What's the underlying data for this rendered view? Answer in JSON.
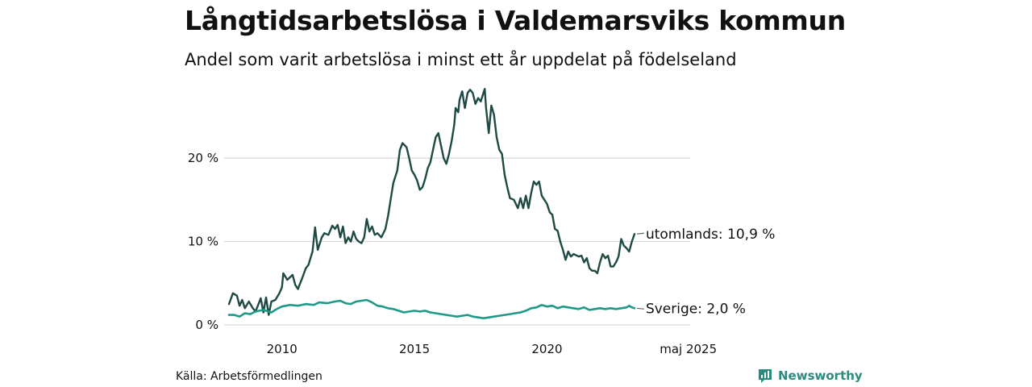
{
  "header": {
    "title": "Långtidsarbetslösa i Valdemarsviks kommun",
    "subtitle": "Andel som varit arbetslösa i minst ett år uppdelat på födelseland"
  },
  "footer": {
    "source": "Källa: Arbetsförmedlingen",
    "brand": "Newsworthy"
  },
  "colors": {
    "utomlands": "#1f4a44",
    "sverige": "#1d9a87",
    "grid": "#d9d9d9",
    "brand": "#2a8a7e"
  },
  "chart_data": {
    "type": "line",
    "title": "Långtidsarbetslösa i Valdemarsviks kommun",
    "subtitle": "Andel som varit arbetslösa i minst ett år uppdelat på födelseland",
    "x_ticks": [
      {
        "x": 2010,
        "label": "2010"
      },
      {
        "x": 2015,
        "label": "2015"
      },
      {
        "x": 2020,
        "label": "2020"
      },
      {
        "x": 2025.33,
        "label": "maj 2025"
      }
    ],
    "y_ticks": [
      {
        "y": 0,
        "label": "0 %"
      },
      {
        "y": 10,
        "label": "10 %"
      },
      {
        "y": 20,
        "label": "20 %"
      }
    ],
    "xlim": [
      2008.0,
      2025.4
    ],
    "ylim": [
      0,
      29
    ],
    "grid": true,
    "legend": "end-of-line labels",
    "series": [
      {
        "name": "utomlands",
        "end_label": "utomlands: 10,9 %",
        "color": "#1f4a44",
        "points": [
          [
            2008.0,
            2.5
          ],
          [
            2008.15,
            3.8
          ],
          [
            2008.3,
            3.5
          ],
          [
            2008.4,
            2.3
          ],
          [
            2008.5,
            3.0
          ],
          [
            2008.6,
            2.0
          ],
          [
            2008.75,
            2.8
          ],
          [
            2008.9,
            2.0
          ],
          [
            2009.0,
            1.6
          ],
          [
            2009.1,
            2.4
          ],
          [
            2009.2,
            3.2
          ],
          [
            2009.3,
            1.5
          ],
          [
            2009.4,
            3.3
          ],
          [
            2009.5,
            1.2
          ],
          [
            2009.6,
            2.8
          ],
          [
            2009.75,
            3.0
          ],
          [
            2009.9,
            3.8
          ],
          [
            2010.0,
            4.5
          ],
          [
            2010.05,
            6.2
          ],
          [
            2010.2,
            5.4
          ],
          [
            2010.4,
            6.0
          ],
          [
            2010.5,
            4.8
          ],
          [
            2010.6,
            4.3
          ],
          [
            2010.75,
            5.5
          ],
          [
            2010.9,
            6.8
          ],
          [
            2011.0,
            7.2
          ],
          [
            2011.15,
            8.8
          ],
          [
            2011.25,
            11.7
          ],
          [
            2011.35,
            9.0
          ],
          [
            2011.5,
            10.5
          ],
          [
            2011.6,
            11.0
          ],
          [
            2011.75,
            10.8
          ],
          [
            2011.9,
            11.9
          ],
          [
            2012.0,
            11.5
          ],
          [
            2012.1,
            12.0
          ],
          [
            2012.2,
            10.5
          ],
          [
            2012.3,
            11.8
          ],
          [
            2012.4,
            9.8
          ],
          [
            2012.5,
            10.5
          ],
          [
            2012.6,
            10.0
          ],
          [
            2012.7,
            11.2
          ],
          [
            2012.8,
            10.3
          ],
          [
            2012.9,
            10.0
          ],
          [
            2013.0,
            9.8
          ],
          [
            2013.1,
            10.5
          ],
          [
            2013.2,
            12.7
          ],
          [
            2013.3,
            11.2
          ],
          [
            2013.4,
            11.8
          ],
          [
            2013.5,
            10.8
          ],
          [
            2013.6,
            11.0
          ],
          [
            2013.75,
            10.5
          ],
          [
            2013.9,
            11.5
          ],
          [
            2014.0,
            13.0
          ],
          [
            2014.2,
            17.0
          ],
          [
            2014.35,
            18.5
          ],
          [
            2014.45,
            21.0
          ],
          [
            2014.55,
            21.8
          ],
          [
            2014.7,
            21.3
          ],
          [
            2014.8,
            20.0
          ],
          [
            2014.9,
            18.5
          ],
          [
            2015.0,
            18.0
          ],
          [
            2015.1,
            17.3
          ],
          [
            2015.2,
            16.2
          ],
          [
            2015.3,
            16.5
          ],
          [
            2015.4,
            17.5
          ],
          [
            2015.5,
            18.8
          ],
          [
            2015.6,
            19.5
          ],
          [
            2015.7,
            21.0
          ],
          [
            2015.8,
            22.5
          ],
          [
            2015.9,
            23.0
          ],
          [
            2016.0,
            21.5
          ],
          [
            2016.1,
            20.0
          ],
          [
            2016.2,
            19.3
          ],
          [
            2016.3,
            20.5
          ],
          [
            2016.4,
            22.0
          ],
          [
            2016.5,
            24.0
          ],
          [
            2016.55,
            26.0
          ],
          [
            2016.65,
            25.5
          ],
          [
            2016.7,
            27.0
          ],
          [
            2016.8,
            28.0
          ],
          [
            2016.9,
            26.0
          ],
          [
            2017.0,
            27.8
          ],
          [
            2017.1,
            28.2
          ],
          [
            2017.2,
            27.8
          ],
          [
            2017.3,
            26.5
          ],
          [
            2017.4,
            27.2
          ],
          [
            2017.5,
            26.8
          ],
          [
            2017.6,
            27.8
          ],
          [
            2017.65,
            28.3
          ],
          [
            2017.7,
            26.0
          ],
          [
            2017.8,
            23.0
          ],
          [
            2017.9,
            26.3
          ],
          [
            2018.0,
            25.2
          ],
          [
            2018.1,
            22.5
          ],
          [
            2018.2,
            21.0
          ],
          [
            2018.3,
            20.5
          ],
          [
            2018.4,
            18.0
          ],
          [
            2018.5,
            16.5
          ],
          [
            2018.6,
            15.2
          ],
          [
            2018.75,
            15.0
          ],
          [
            2018.9,
            14.0
          ],
          [
            2019.0,
            15.2
          ],
          [
            2019.1,
            14.0
          ],
          [
            2019.2,
            15.5
          ],
          [
            2019.3,
            14.0
          ],
          [
            2019.4,
            15.8
          ],
          [
            2019.5,
            17.2
          ],
          [
            2019.6,
            16.8
          ],
          [
            2019.7,
            17.2
          ],
          [
            2019.8,
            15.5
          ],
          [
            2019.9,
            15.0
          ],
          [
            2020.0,
            14.5
          ],
          [
            2020.1,
            13.5
          ],
          [
            2020.2,
            13.2
          ],
          [
            2020.3,
            11.5
          ],
          [
            2020.4,
            11.3
          ],
          [
            2020.5,
            10.0
          ],
          [
            2020.6,
            9.0
          ],
          [
            2020.7,
            7.8
          ],
          [
            2020.8,
            8.8
          ],
          [
            2020.9,
            8.2
          ],
          [
            2021.0,
            8.5
          ],
          [
            2021.2,
            8.2
          ],
          [
            2021.3,
            8.3
          ],
          [
            2021.4,
            7.5
          ],
          [
            2021.5,
            8.0
          ],
          [
            2021.6,
            6.8
          ],
          [
            2021.7,
            6.5
          ],
          [
            2021.8,
            6.5
          ],
          [
            2021.9,
            6.2
          ],
          [
            2022.0,
            7.5
          ],
          [
            2022.1,
            8.5
          ],
          [
            2022.2,
            8.0
          ],
          [
            2022.3,
            8.3
          ],
          [
            2022.4,
            7.0
          ],
          [
            2022.5,
            7.0
          ],
          [
            2022.6,
            7.5
          ],
          [
            2022.7,
            8.2
          ],
          [
            2022.8,
            10.3
          ],
          [
            2022.9,
            9.5
          ],
          [
            2023.0,
            9.2
          ],
          [
            2023.1,
            8.8
          ],
          [
            2023.2,
            10.0
          ],
          [
            2023.3,
            10.9
          ]
        ]
      },
      {
        "name": "Sverige",
        "end_label": "Sverige:  2,0 %",
        "color": "#1d9a87",
        "points": [
          [
            2008.0,
            1.2
          ],
          [
            2008.2,
            1.2
          ],
          [
            2008.4,
            1.0
          ],
          [
            2008.6,
            1.4
          ],
          [
            2008.8,
            1.3
          ],
          [
            2009.0,
            1.6
          ],
          [
            2009.3,
            1.8
          ],
          [
            2009.6,
            1.5
          ],
          [
            2009.8,
            1.9
          ],
          [
            2010.0,
            2.2
          ],
          [
            2010.3,
            2.4
          ],
          [
            2010.6,
            2.3
          ],
          [
            2010.9,
            2.5
          ],
          [
            2011.2,
            2.4
          ],
          [
            2011.4,
            2.7
          ],
          [
            2011.7,
            2.6
          ],
          [
            2012.0,
            2.8
          ],
          [
            2012.2,
            2.9
          ],
          [
            2012.4,
            2.6
          ],
          [
            2012.6,
            2.5
          ],
          [
            2012.8,
            2.8
          ],
          [
            2013.0,
            2.9
          ],
          [
            2013.2,
            3.0
          ],
          [
            2013.4,
            2.7
          ],
          [
            2013.6,
            2.3
          ],
          [
            2013.8,
            2.2
          ],
          [
            2014.0,
            2.0
          ],
          [
            2014.2,
            1.9
          ],
          [
            2014.4,
            1.7
          ],
          [
            2014.6,
            1.5
          ],
          [
            2014.8,
            1.6
          ],
          [
            2015.0,
            1.7
          ],
          [
            2015.2,
            1.6
          ],
          [
            2015.4,
            1.7
          ],
          [
            2015.6,
            1.5
          ],
          [
            2015.8,
            1.4
          ],
          [
            2016.0,
            1.3
          ],
          [
            2016.2,
            1.2
          ],
          [
            2016.4,
            1.1
          ],
          [
            2016.6,
            1.0
          ],
          [
            2016.8,
            1.1
          ],
          [
            2017.0,
            1.2
          ],
          [
            2017.2,
            1.0
          ],
          [
            2017.4,
            0.9
          ],
          [
            2017.6,
            0.8
          ],
          [
            2017.8,
            0.9
          ],
          [
            2018.0,
            1.0
          ],
          [
            2018.2,
            1.1
          ],
          [
            2018.4,
            1.2
          ],
          [
            2018.6,
            1.3
          ],
          [
            2018.8,
            1.4
          ],
          [
            2019.0,
            1.5
          ],
          [
            2019.2,
            1.7
          ],
          [
            2019.4,
            2.0
          ],
          [
            2019.6,
            2.1
          ],
          [
            2019.8,
            2.4
          ],
          [
            2020.0,
            2.2
          ],
          [
            2020.2,
            2.3
          ],
          [
            2020.4,
            2.0
          ],
          [
            2020.6,
            2.2
          ],
          [
            2020.8,
            2.1
          ],
          [
            2021.0,
            2.0
          ],
          [
            2021.2,
            1.9
          ],
          [
            2021.4,
            2.1
          ],
          [
            2021.6,
            1.8
          ],
          [
            2021.8,
            1.9
          ],
          [
            2022.0,
            2.0
          ],
          [
            2022.2,
            1.9
          ],
          [
            2022.4,
            2.0
          ],
          [
            2022.6,
            1.9
          ],
          [
            2022.8,
            2.0
          ],
          [
            2023.0,
            2.1
          ],
          [
            2023.1,
            2.3
          ],
          [
            2023.2,
            2.1
          ],
          [
            2023.3,
            2.0
          ]
        ]
      }
    ]
  }
}
